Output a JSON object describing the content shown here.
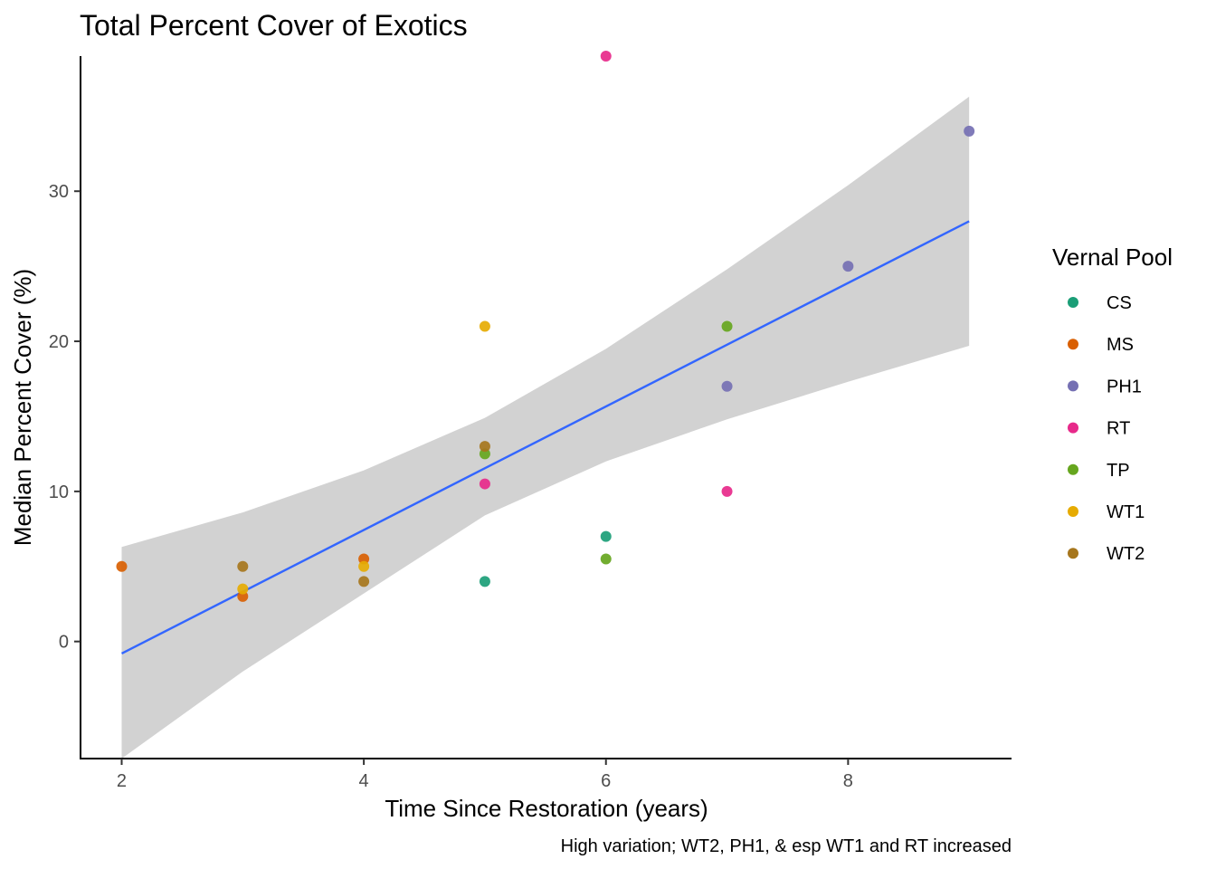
{
  "chart_data": {
    "type": "scatter",
    "title": "Total Percent Cover of Exotics",
    "xlabel": "Time Since Restoration (years)",
    "ylabel": "Median Percent Cover (%)",
    "caption": "High variation; WT2, PH1, & esp WT1 and RT increased",
    "xlim": [
      1.66,
      9.35
    ],
    "ylim": [
      -7.8,
      39.0
    ],
    "x_ticks": [
      2,
      4,
      6,
      8
    ],
    "y_ticks": [
      0,
      10,
      20,
      30
    ],
    "grid": false,
    "legend": {
      "title": "Vernal Pool",
      "placement": "right",
      "entries": [
        "CS",
        "MS",
        "PH1",
        "RT",
        "TP",
        "WT1",
        "WT2"
      ]
    },
    "colors": {
      "CS": "#1B9E77",
      "MS": "#D95F02",
      "PH1": "#7570B3",
      "RT": "#E7298A",
      "TP": "#66A61E",
      "WT1": "#E6AB02",
      "WT2": "#A6761D"
    },
    "series": [
      {
        "name": "CS",
        "points": [
          [
            5,
            4
          ],
          [
            6,
            7
          ]
        ]
      },
      {
        "name": "MS",
        "points": [
          [
            2,
            5
          ],
          [
            3,
            3
          ],
          [
            4,
            5.5
          ]
        ]
      },
      {
        "name": "PH1",
        "points": [
          [
            7,
            17
          ],
          [
            8,
            25
          ],
          [
            9,
            34
          ]
        ]
      },
      {
        "name": "RT",
        "points": [
          [
            5,
            10.5
          ],
          [
            6,
            39
          ],
          [
            7,
            10
          ]
        ]
      },
      {
        "name": "TP",
        "points": [
          [
            5,
            12.5
          ],
          [
            6,
            5.5
          ],
          [
            7,
            21
          ]
        ]
      },
      {
        "name": "WT1",
        "points": [
          [
            3,
            3.5
          ],
          [
            4,
            5
          ],
          [
            5,
            21
          ]
        ]
      },
      {
        "name": "WT2",
        "points": [
          [
            3,
            5
          ],
          [
            4,
            4
          ],
          [
            5,
            13
          ]
        ]
      }
    ],
    "fit_line": {
      "color": "#3366FF",
      "points": [
        [
          2,
          -0.8
        ],
        [
          9,
          28
        ]
      ]
    },
    "confidence_band": {
      "color": "#D2D2D2",
      "upper": [
        [
          2,
          6.3
        ],
        [
          3,
          8.6
        ],
        [
          4,
          11.4
        ],
        [
          5,
          14.9
        ],
        [
          6,
          19.5
        ],
        [
          7,
          24.8
        ],
        [
          8,
          30.4
        ],
        [
          9,
          36.3
        ]
      ],
      "lower": [
        [
          2,
          -7.8
        ],
        [
          3,
          -2.0
        ],
        [
          4,
          3.2
        ],
        [
          5,
          8.4
        ],
        [
          6,
          12.0
        ],
        [
          7,
          14.8
        ],
        [
          8,
          17.3
        ],
        [
          9,
          19.7
        ]
      ]
    }
  }
}
